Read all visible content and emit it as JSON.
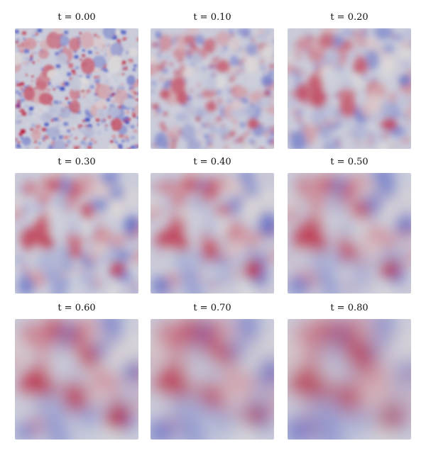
{
  "panels": [
    {
      "label": "t = 0.00"
    },
    {
      "label": "t = 0.10"
    },
    {
      "label": "t = 0.20"
    },
    {
      "label": "t = 0.30"
    },
    {
      "label": "t = 0.40"
    },
    {
      "label": "t = 0.50"
    },
    {
      "label": "t = 0.60"
    },
    {
      "label": "t = 0.70"
    },
    {
      "label": "t = 0.80"
    }
  ],
  "colormap": {
    "negative": "#3b4cc0",
    "neutral": "#dddddd",
    "positive": "#b40426"
  }
}
